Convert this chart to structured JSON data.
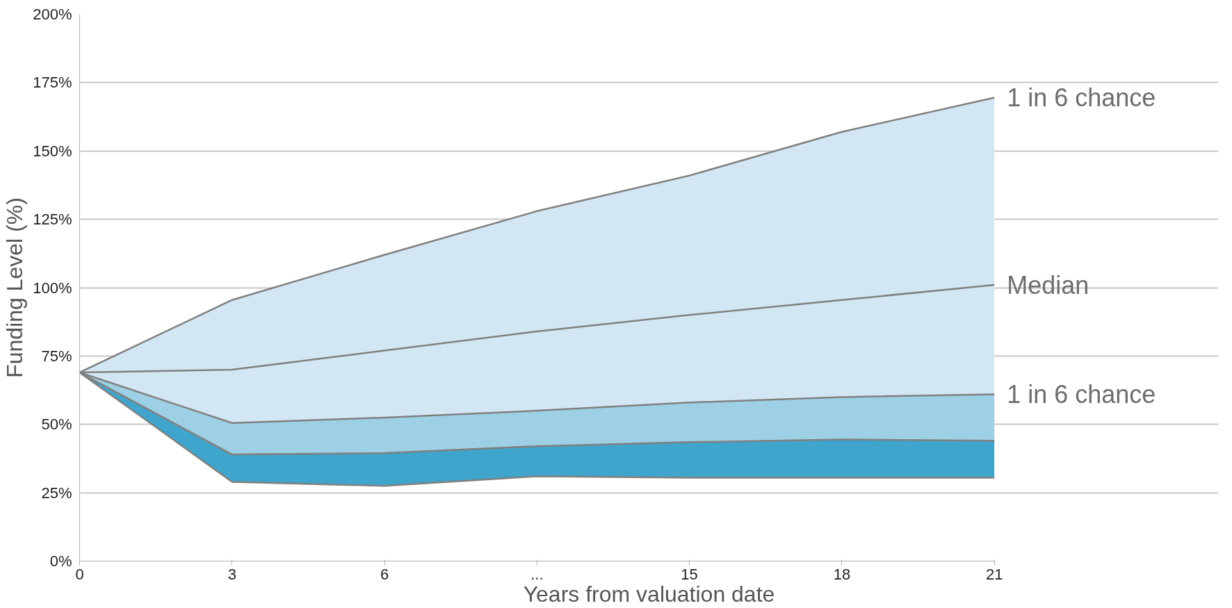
{
  "chart_data": {
    "type": "line",
    "xlabel": "Years from valuation date",
    "ylabel": "Funding Level (%)",
    "categories": [
      "0",
      "3",
      "6",
      "...",
      "15",
      "18",
      "21"
    ],
    "series": [
      {
        "name": "1 in 6 chance",
        "color": "#808080",
        "values": [
          69,
          95.5,
          112,
          128,
          141,
          157,
          169.5
        ]
      },
      {
        "name": "Median",
        "color": "#808080",
        "values": [
          69,
          70,
          77,
          84,
          90,
          95.5,
          101
        ],
        "lower": [
          69,
          50.5,
          52.5,
          55,
          58,
          60,
          61
        ],
        "upper": [
          69,
          95.5,
          112,
          128,
          141,
          157,
          169.5
        ]
      },
      {
        "name": "1 in 6 chance",
        "color": "#808080",
        "values": [
          69,
          50.5,
          52.5,
          55,
          58,
          60,
          61
        ],
        "lower": [
          69,
          39,
          39.5,
          42,
          43.5,
          44.5,
          44
        ],
        "upper": [
          69,
          50.5,
          52.5,
          55,
          58,
          60,
          61
        ]
      },
      {
        "color": "#808080",
        "values": [
          69,
          39,
          39.5,
          42,
          43.5,
          44.5,
          44
        ],
        "lower": [
          69,
          29,
          27.5,
          31,
          30.5,
          30.5,
          30.5
        ],
        "upper": [
          69,
          39,
          39.5,
          42,
          43.5,
          44.5,
          44
        ]
      },
      {
        "color": "#808080",
        "values": [
          69,
          29,
          27.5,
          31,
          30.5,
          30.5,
          30.5
        ]
      }
    ],
    "ylim": [
      0,
      200
    ],
    "yticks": [
      {
        "value": 0,
        "label": "0%"
      },
      {
        "value": 25,
        "label": "25%"
      },
      {
        "value": 50,
        "label": "50%"
      },
      {
        "value": 75,
        "label": "75%"
      },
      {
        "value": 100,
        "label": "100%"
      },
      {
        "value": 125,
        "label": "125%"
      },
      {
        "value": 150,
        "label": "150%"
      },
      {
        "value": 175,
        "label": "175%"
      },
      {
        "value": 200,
        "label": "200%"
      }
    ],
    "grid": "y",
    "line_style": "solid"
  }
}
